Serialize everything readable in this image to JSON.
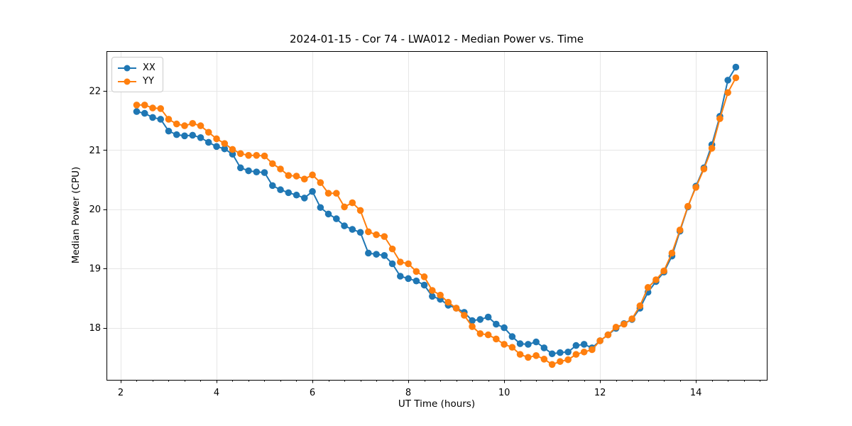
{
  "figure": {
    "title": "2024-01-15 - Cor 74 - LWA012 - Median Power vs. Time",
    "xlabel": "UT Time (hours)",
    "ylabel": "Median Power (CPU)"
  },
  "legend": {
    "position": "upper left",
    "items": [
      {
        "label": "XX",
        "color": "#1f77b4"
      },
      {
        "label": "YY",
        "color": "#ff7f0e"
      }
    ]
  },
  "chart_data": {
    "type": "line",
    "title": "2024-01-15 - Cor 74 - LWA012 - Median Power vs. Time",
    "xlabel": "UT Time (hours)",
    "ylabel": "Median Power (CPU)",
    "grid": true,
    "legend_position": "upper left",
    "marker": "circle",
    "xlim": [
      1.704,
      15.479
    ],
    "ylim": [
      17.12,
      22.67
    ],
    "x_ticks": [
      2,
      4,
      6,
      8,
      10,
      12,
      14
    ],
    "x_minor_step": 0.3333,
    "y_ticks": [
      18,
      19,
      20,
      21,
      22
    ],
    "x": [
      2.333,
      2.5,
      2.667,
      2.833,
      3,
      3.167,
      3.333,
      3.5,
      3.667,
      3.833,
      4,
      4.167,
      4.333,
      4.5,
      4.667,
      4.833,
      5,
      5.167,
      5.333,
      5.5,
      5.667,
      5.833,
      6,
      6.167,
      6.333,
      6.5,
      6.667,
      6.833,
      7,
      7.167,
      7.333,
      7.5,
      7.667,
      7.833,
      8,
      8.167,
      8.333,
      8.5,
      8.667,
      8.833,
      9,
      9.167,
      9.333,
      9.5,
      9.667,
      9.833,
      10,
      10.167,
      10.333,
      10.5,
      10.667,
      10.833,
      11,
      11.167,
      11.333,
      11.5,
      11.667,
      11.833,
      12,
      12.167,
      12.333,
      12.5,
      12.667,
      12.833,
      13,
      13.167,
      13.333,
      13.5,
      13.667,
      13.833,
      14,
      14.167,
      14.333,
      14.5,
      14.667,
      14.833
    ],
    "series": [
      {
        "name": "XX",
        "color": "#1f77b4",
        "values": [
          21.65,
          21.62,
          21.55,
          21.52,
          21.32,
          21.26,
          21.24,
          21.25,
          21.21,
          21.13,
          21.06,
          21.02,
          20.93,
          20.7,
          20.65,
          20.63,
          20.62,
          20.4,
          20.33,
          20.28,
          20.24,
          20.19,
          20.3,
          20.03,
          19.92,
          19.84,
          19.72,
          19.66,
          19.61,
          19.26,
          19.24,
          19.22,
          19.08,
          18.87,
          18.83,
          18.79,
          18.72,
          18.53,
          18.48,
          18.38,
          18.33,
          18.26,
          18.12,
          18.14,
          18.18,
          18.06,
          18.0,
          17.85,
          17.73,
          17.72,
          17.76,
          17.66,
          17.56,
          17.58,
          17.59,
          17.7,
          17.72,
          17.66,
          17.78,
          17.88,
          17.99,
          18.07,
          18.14,
          18.33,
          18.6,
          18.78,
          18.94,
          19.21,
          19.63,
          20.04,
          20.39,
          20.7,
          21.09,
          21.57,
          22.18,
          22.4
        ]
      },
      {
        "name": "YY",
        "color": "#ff7f0e",
        "values": [
          21.76,
          21.76,
          21.71,
          21.7,
          21.52,
          21.44,
          21.41,
          21.45,
          21.41,
          21.3,
          21.19,
          21.11,
          21.01,
          20.94,
          20.91,
          20.91,
          20.9,
          20.77,
          20.68,
          20.57,
          20.56,
          20.51,
          20.58,
          20.45,
          20.27,
          20.27,
          20.04,
          20.11,
          19.98,
          19.62,
          19.57,
          19.54,
          19.33,
          19.11,
          19.08,
          18.95,
          18.86,
          18.63,
          18.55,
          18.43,
          18.33,
          18.21,
          18.02,
          17.9,
          17.88,
          17.81,
          17.72,
          17.67,
          17.55,
          17.5,
          17.53,
          17.47,
          17.38,
          17.43,
          17.46,
          17.55,
          17.59,
          17.63,
          17.78,
          17.88,
          18.01,
          18.06,
          18.15,
          18.37,
          18.68,
          18.81,
          18.96,
          19.26,
          19.65,
          20.05,
          20.37,
          20.68,
          21.03,
          21.53,
          21.97,
          22.22
        ]
      }
    ]
  }
}
